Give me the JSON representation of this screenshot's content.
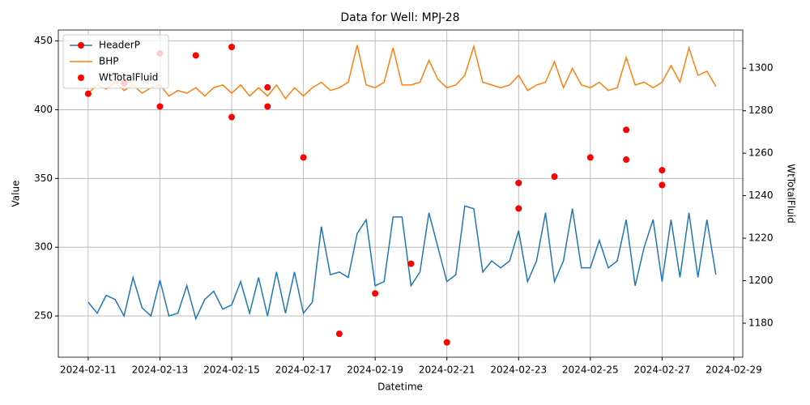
{
  "chart_data": {
    "type": "line",
    "title": "Data for Well: MPJ-28",
    "x_label": "Datetime",
    "y_label": "Value",
    "y2_label": "WtTotalFluid",
    "xlim": [
      "2024-02-10T04:00",
      "2024-02-29T06:00"
    ],
    "xticks": [
      "2024-02-11",
      "2024-02-13",
      "2024-02-15",
      "2024-02-17",
      "2024-02-19",
      "2024-02-21",
      "2024-02-23",
      "2024-02-25",
      "2024-02-27",
      "2024-02-29"
    ],
    "ylim": [
      220,
      458
    ],
    "yticks": [
      250,
      300,
      350,
      400,
      450
    ],
    "y2lim": [
      1164,
      1318
    ],
    "y2ticks": [
      1180,
      1200,
      1220,
      1240,
      1260,
      1280,
      1300
    ],
    "grid": true,
    "legend": "upper left",
    "x": [
      "2024-02-11T00:00",
      "2024-02-11T06:00",
      "2024-02-11T12:00",
      "2024-02-11T18:00",
      "2024-02-12T00:00",
      "2024-02-12T06:00",
      "2024-02-12T12:00",
      "2024-02-12T18:00",
      "2024-02-13T00:00",
      "2024-02-13T06:00",
      "2024-02-13T12:00",
      "2024-02-13T18:00",
      "2024-02-14T00:00",
      "2024-02-14T06:00",
      "2024-02-14T12:00",
      "2024-02-14T18:00",
      "2024-02-15T00:00",
      "2024-02-15T06:00",
      "2024-02-15T12:00",
      "2024-02-15T18:00",
      "2024-02-16T00:00",
      "2024-02-16T06:00",
      "2024-02-16T12:00",
      "2024-02-16T18:00",
      "2024-02-17T00:00",
      "2024-02-17T06:00",
      "2024-02-17T12:00",
      "2024-02-17T18:00",
      "2024-02-18T00:00",
      "2024-02-18T06:00",
      "2024-02-18T12:00",
      "2024-02-18T18:00",
      "2024-02-19T00:00",
      "2024-02-19T06:00",
      "2024-02-19T12:00",
      "2024-02-19T18:00",
      "2024-02-20T00:00",
      "2024-02-20T06:00",
      "2024-02-20T12:00",
      "2024-02-20T18:00",
      "2024-02-21T00:00",
      "2024-02-21T06:00",
      "2024-02-21T12:00",
      "2024-02-21T18:00",
      "2024-02-22T00:00",
      "2024-02-22T06:00",
      "2024-02-22T12:00",
      "2024-02-22T18:00",
      "2024-02-23T00:00",
      "2024-02-23T06:00",
      "2024-02-23T12:00",
      "2024-02-23T18:00",
      "2024-02-24T00:00",
      "2024-02-24T06:00",
      "2024-02-24T12:00",
      "2024-02-24T18:00",
      "2024-02-25T00:00",
      "2024-02-25T06:00",
      "2024-02-25T12:00",
      "2024-02-25T18:00",
      "2024-02-26T00:00",
      "2024-02-26T06:00",
      "2024-02-26T12:00",
      "2024-02-26T18:00",
      "2024-02-27T00:00",
      "2024-02-27T06:00",
      "2024-02-27T12:00",
      "2024-02-27T18:00",
      "2024-02-28T00:00",
      "2024-02-28T06:00",
      "2024-02-28T12:00"
    ],
    "series": [
      {
        "name": "HeaderP",
        "type": "line",
        "color": "#1f77b4",
        "values": [
          260,
          252,
          265,
          262,
          250,
          278,
          256,
          250,
          276,
          250,
          252,
          272,
          248,
          262,
          268,
          255,
          258,
          275,
          252,
          278,
          250,
          282,
          252,
          282,
          252,
          260,
          315,
          280,
          282,
          278,
          310,
          320,
          272,
          275,
          322,
          322,
          272,
          282,
          325,
          300,
          275,
          280,
          330,
          328,
          282,
          290,
          285,
          290,
          312,
          275,
          290,
          325,
          275,
          290,
          328,
          285,
          285,
          305,
          285,
          290,
          320,
          272,
          300,
          320,
          275,
          320,
          278,
          325,
          278,
          320,
          280
        ]
      },
      {
        "name": "BHP",
        "type": "line",
        "color": "#ff7f0e",
        "values": [
          412,
          418,
          415,
          420,
          414,
          418,
          412,
          416,
          418,
          410,
          414,
          412,
          416,
          410,
          416,
          418,
          412,
          418,
          410,
          416,
          410,
          418,
          408,
          416,
          410,
          416,
          420,
          414,
          416,
          420,
          447,
          418,
          416,
          420,
          445,
          418,
          418,
          420,
          436,
          422,
          416,
          418,
          425,
          446,
          420,
          418,
          416,
          418,
          425,
          414,
          418,
          420,
          435,
          416,
          430,
          418,
          416,
          420,
          414,
          416,
          438,
          418,
          420,
          416,
          420,
          432,
          420,
          445,
          425,
          428,
          417
        ]
      },
      {
        "name": "WtTotalFluid",
        "type": "scatter",
        "axis": "y2",
        "color": "#ff0000",
        "x": [
          "2024-02-11",
          "2024-02-12",
          "2024-02-13",
          "2024-02-13",
          "2024-02-14",
          "2024-02-15",
          "2024-02-15",
          "2024-02-16",
          "2024-02-16",
          "2024-02-17",
          "2024-02-18",
          "2024-02-19",
          "2024-02-20",
          "2024-02-21",
          "2024-02-23",
          "2024-02-23",
          "2024-02-24",
          "2024-02-25",
          "2024-02-26",
          "2024-02-26",
          "2024-02-27",
          "2024-02-27"
        ],
        "values": [
          1288,
          1293,
          1307,
          1282,
          1306,
          1310,
          1277,
          1291,
          1282,
          1258,
          1175,
          1194,
          1208,
          1171,
          1246,
          1234,
          1249,
          1258,
          1271,
          1257,
          1252,
          1245
        ]
      }
    ]
  }
}
